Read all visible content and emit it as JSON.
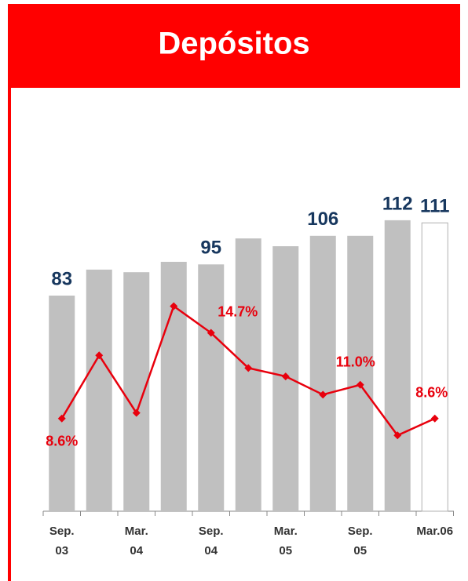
{
  "chart_data": {
    "type": "bar_line",
    "title": "Depósitos",
    "categories": [
      "Sep. 03",
      null,
      "Mar. 04",
      null,
      "Sep. 04",
      null,
      "Mar. 05",
      null,
      "Sep. 05",
      null,
      "Mar.06"
    ],
    "series": [
      {
        "type": "bar",
        "values": [
          83,
          93,
          92,
          96,
          95,
          105,
          102,
          106,
          106,
          112,
          111
        ],
        "value_labels": [
          "83",
          null,
          null,
          null,
          "95",
          null,
          null,
          "106",
          null,
          "112",
          "111"
        ],
        "colors": [
          "#c0c0c0",
          "#c0c0c0",
          "#c0c0c0",
          "#c0c0c0",
          "#c0c0c0",
          "#c0c0c0",
          "#c0c0c0",
          "#c0c0c0",
          "#c0c0c0",
          "#c0c0c0",
          "#ffffff"
        ],
        "edge_color": "#b0b0b0",
        "label_color": "#17375e"
      },
      {
        "type": "line",
        "axis": "y2",
        "color": "#e8000d",
        "values": [
          8.6,
          13.1,
          9.0,
          16.6,
          14.7,
          12.2,
          11.6,
          10.3,
          11.0,
          7.4,
          8.6
        ],
        "value_labels": [
          "8.6%",
          null,
          null,
          null,
          "14.7%",
          null,
          null,
          null,
          "11.0%",
          null,
          "8.6%"
        ]
      }
    ],
    "ylim": [
      0,
      120
    ],
    "y2lim": [
      2,
      24.2
    ]
  }
}
